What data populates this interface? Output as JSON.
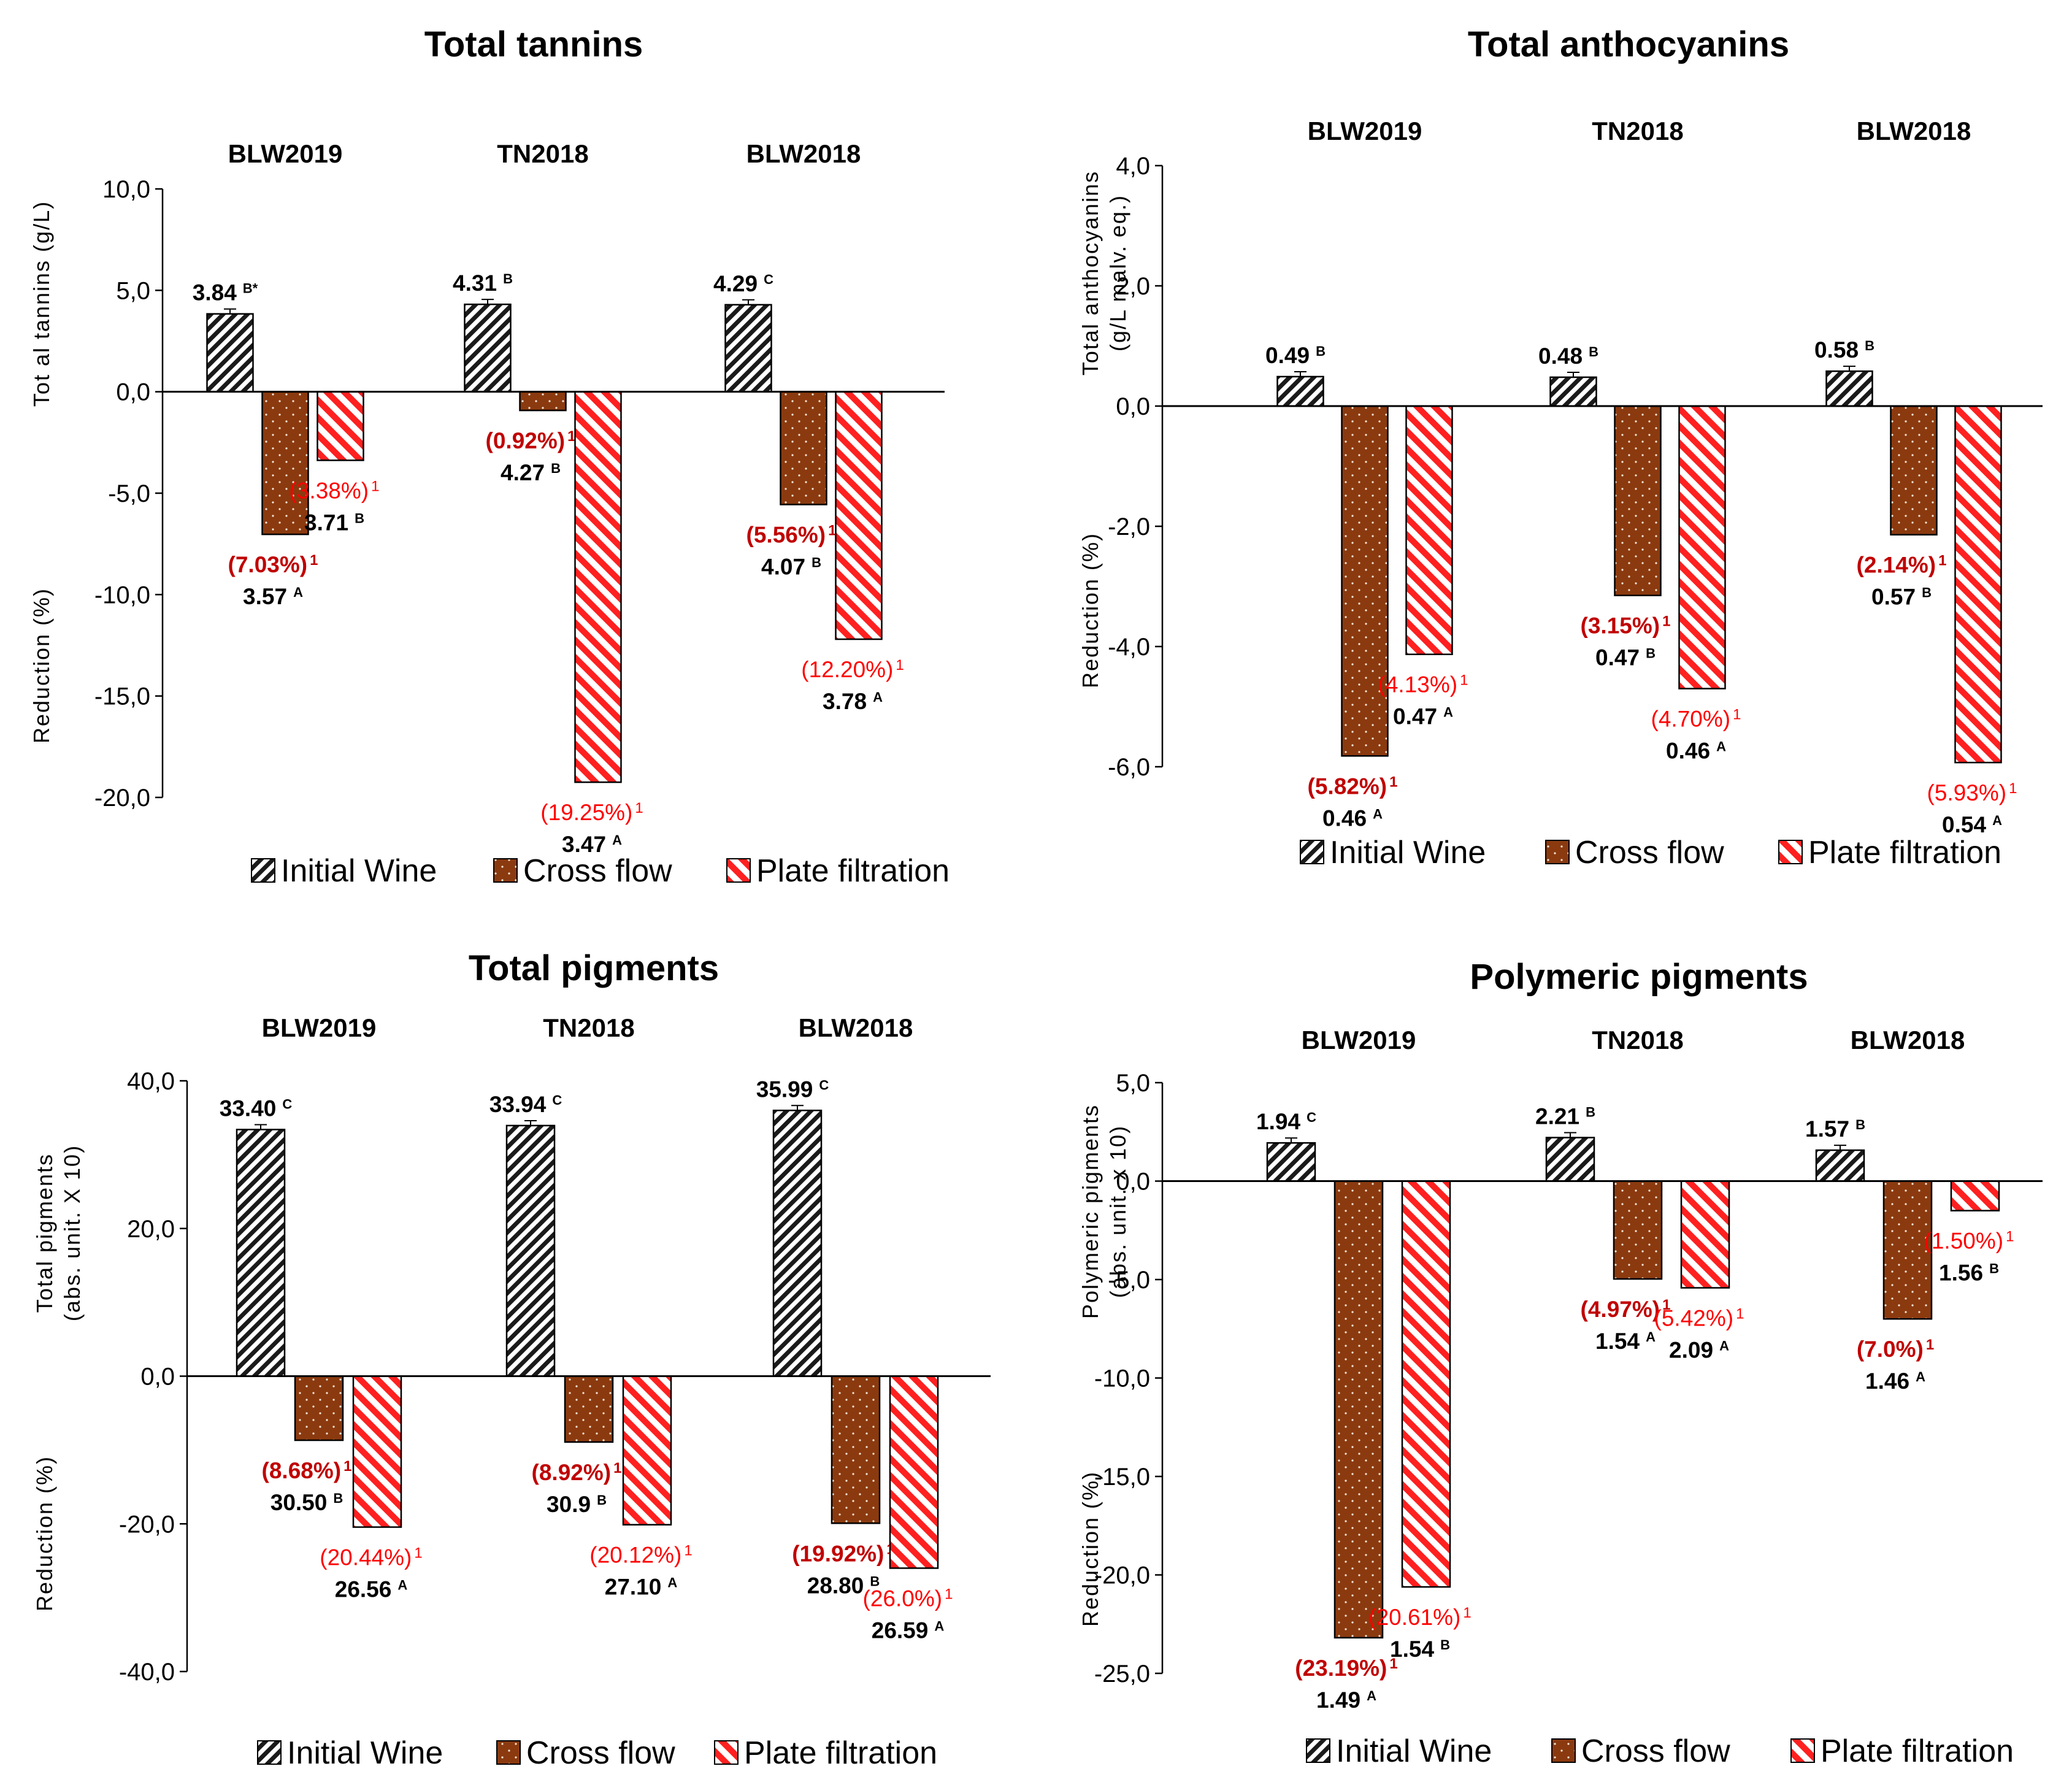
{
  "colors": {
    "initial_wine_bg": "#ffffff",
    "initial_wine_stripe": "#1a1a1a",
    "cross_flow": "#8b3a0f",
    "cross_flow_dots": "#f5e6d8",
    "plate_filtration_stripe": "#ff2020",
    "plate_filtration_bg": "#ffffff",
    "red_dark_label": "#c00000",
    "red_light_label": "#ff0000"
  },
  "legend": [
    "Initial Wine",
    "Cross flow",
    "Plate filtration"
  ],
  "chart_data": [
    {
      "type": "bar",
      "title": "Total tannins",
      "ylabel_top": "Tot al tannins (g/L)",
      "ylabel_bottom": "Reduction (%)",
      "ylim": [
        -20,
        10
      ],
      "yticks": [
        10,
        5,
        0,
        -5,
        -10,
        -15,
        -20
      ],
      "ytick_labels": [
        "10,0",
        "5,0",
        "0,0",
        "-5,0",
        "-10,0",
        "-15,0",
        "-20,0"
      ],
      "categories": [
        "BLW2019",
        "TN2018",
        "BLW2018"
      ],
      "series": [
        {
          "name": "Initial Wine",
          "values": [
            3.84,
            4.31,
            4.29
          ],
          "labels": [
            "3.84",
            "4.31",
            "4.29"
          ],
          "letters": [
            "B*",
            "B",
            "C"
          ]
        },
        {
          "name": "Cross flow",
          "values": [
            -7.03,
            -0.92,
            -5.56
          ],
          "labels": [
            "3.57",
            "4.27",
            "4.07"
          ],
          "letters": [
            "A",
            "B",
            "B"
          ],
          "pct_labels": [
            "(7.03%)",
            "(0.92%)",
            "(5.56%)"
          ]
        },
        {
          "name": "Plate filtration",
          "values": [
            -3.38,
            -19.25,
            -12.2
          ],
          "labels": [
            "3.71",
            "3.47",
            "3.78"
          ],
          "letters": [
            "B",
            "A",
            "A"
          ],
          "pct_labels": [
            "(3.38%)",
            "(19.25%)",
            "(12.20%)"
          ]
        }
      ],
      "pct_superscript": "1"
    },
    {
      "type": "bar",
      "title": "Total anthocyanins",
      "ylabel_top": "Total anthocyanins (g/L malv. eq.)",
      "ylabel_bottom": "Reduction (%)",
      "ylim": [
        -6,
        4
      ],
      "yticks": [
        4,
        2,
        0,
        -2,
        -4,
        -6
      ],
      "ytick_labels": [
        "4,0",
        "2,0",
        "0,0",
        "-2,0",
        "-4,0",
        "-6,0"
      ],
      "categories": [
        "BLW2019",
        "TN2018",
        "BLW2018"
      ],
      "series": [
        {
          "name": "Initial Wine",
          "values": [
            0.49,
            0.48,
            0.58
          ],
          "labels": [
            "0.49",
            "0.48",
            "0.58"
          ],
          "letters": [
            "B",
            "B",
            "B"
          ]
        },
        {
          "name": "Cross flow",
          "values": [
            -5.82,
            -3.15,
            -2.14
          ],
          "labels": [
            "0.46",
            "0.47",
            "0.57"
          ],
          "letters": [
            "A",
            "B",
            "B"
          ],
          "pct_labels": [
            "(5.82%)",
            "(3.15%)",
            "(2.14%)"
          ]
        },
        {
          "name": "Plate filtration",
          "values": [
            -4.13,
            -4.7,
            -5.93
          ],
          "labels": [
            "0.47",
            "0.46",
            "0.54"
          ],
          "letters": [
            "A",
            "A",
            "A"
          ],
          "pct_labels": [
            "(4.13%)",
            "(4.70%)",
            "(5.93%)"
          ]
        }
      ],
      "pct_superscript": "1"
    },
    {
      "type": "bar",
      "title": "Total pigments",
      "ylabel_top": "Total pigments (abs. unit. X 10)",
      "ylabel_bottom": "Reduction (%)",
      "ylim": [
        -40,
        40
      ],
      "yticks": [
        40,
        20,
        0,
        -20,
        -40
      ],
      "ytick_labels": [
        "40,0",
        "20,0",
        "0,0",
        "-20,0",
        "-40,0"
      ],
      "categories": [
        "BLW2019",
        "TN2018",
        "BLW2018"
      ],
      "series": [
        {
          "name": "Initial Wine",
          "values": [
            33.4,
            33.94,
            35.99
          ],
          "labels": [
            "33.40",
            "33.94",
            "35.99"
          ],
          "letters": [
            "C",
            "C",
            "C"
          ]
        },
        {
          "name": "Cross flow",
          "values": [
            -8.68,
            -8.92,
            -19.92
          ],
          "labels": [
            "30.50",
            "30.9",
            "28.80"
          ],
          "letters": [
            "B",
            "B",
            "B"
          ],
          "pct_labels": [
            "(8.68%)",
            "(8.92%)",
            "(19.92%)"
          ]
        },
        {
          "name": "Plate filtration",
          "values": [
            -20.44,
            -20.12,
            -26.0
          ],
          "labels": [
            "26.56",
            "27.10",
            "26.59"
          ],
          "letters": [
            "A",
            "A",
            "A"
          ],
          "pct_labels": [
            "(20.44%)",
            "(20.12%)",
            "(26.0%)"
          ]
        }
      ],
      "pct_superscript": "1"
    },
    {
      "type": "bar",
      "title": "Polymeric pigments",
      "ylabel_top": "Polymeric pigments (abs. unit. x 10)",
      "ylabel_bottom": "Reduction (%)",
      "ylim": [
        -25,
        5
      ],
      "yticks": [
        5,
        0,
        -5,
        -10,
        -15,
        -20,
        -25
      ],
      "ytick_labels": [
        "5,0",
        "0,0",
        "-5,0",
        "-10,0",
        "-15,0",
        "-20,0",
        "-25,0"
      ],
      "categories": [
        "BLW2019",
        "TN2018",
        "BLW2018"
      ],
      "series": [
        {
          "name": "Initial Wine",
          "values": [
            1.94,
            2.21,
            1.57
          ],
          "labels": [
            "1.94",
            "2.21",
            "1.57"
          ],
          "letters": [
            "C",
            "B",
            "B"
          ]
        },
        {
          "name": "Cross flow",
          "values": [
            -23.19,
            -4.97,
            -7.0
          ],
          "labels": [
            "1.49",
            "1.54",
            "1.46"
          ],
          "letters": [
            "A",
            "A",
            "A"
          ],
          "pct_labels": [
            "(23.19%)",
            "(4.97%)",
            "(7.0%)"
          ]
        },
        {
          "name": "Plate filtration",
          "values": [
            -20.61,
            -5.42,
            -1.5
          ],
          "labels": [
            "1.54",
            "2.09",
            "1.56"
          ],
          "letters": [
            "B",
            "A",
            "B"
          ],
          "pct_labels": [
            "(20.61%)",
            "(5.42%)",
            "(1.50%)"
          ]
        }
      ],
      "pct_superscript": "1"
    }
  ]
}
